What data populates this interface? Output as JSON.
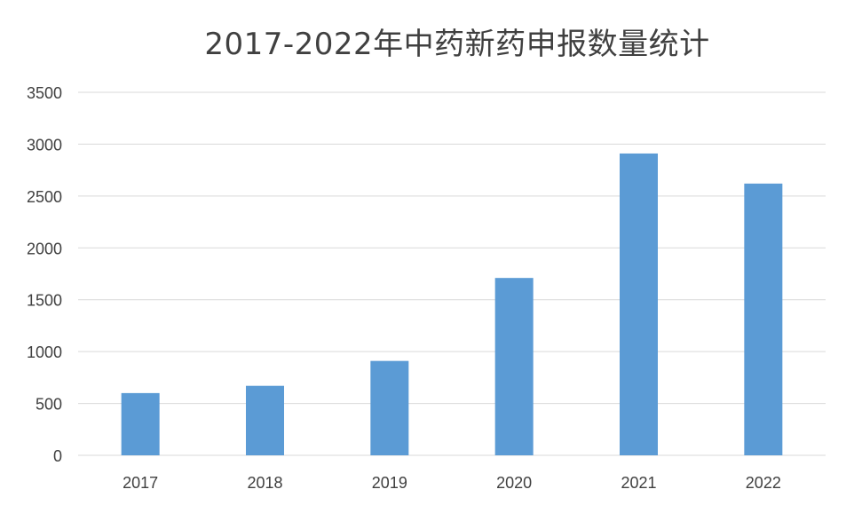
{
  "chart_data": {
    "type": "bar",
    "title": "2017-2022年中药新药申报数量统计",
    "categories": [
      "2017",
      "2018",
      "2019",
      "2020",
      "2021",
      "2022"
    ],
    "values": [
      600,
      670,
      910,
      1710,
      2910,
      2620
    ],
    "ylim": [
      0,
      3500
    ],
    "yticks": [
      0,
      500,
      1000,
      1500,
      2000,
      2500,
      3000,
      3500
    ],
    "xlabel": "",
    "ylabel": "",
    "grid": true,
    "legend": "none",
    "colors": {
      "bar": "#5b9bd5",
      "grid": "#d9d9d9",
      "axis_text": "#404040",
      "title": "#404040"
    }
  }
}
